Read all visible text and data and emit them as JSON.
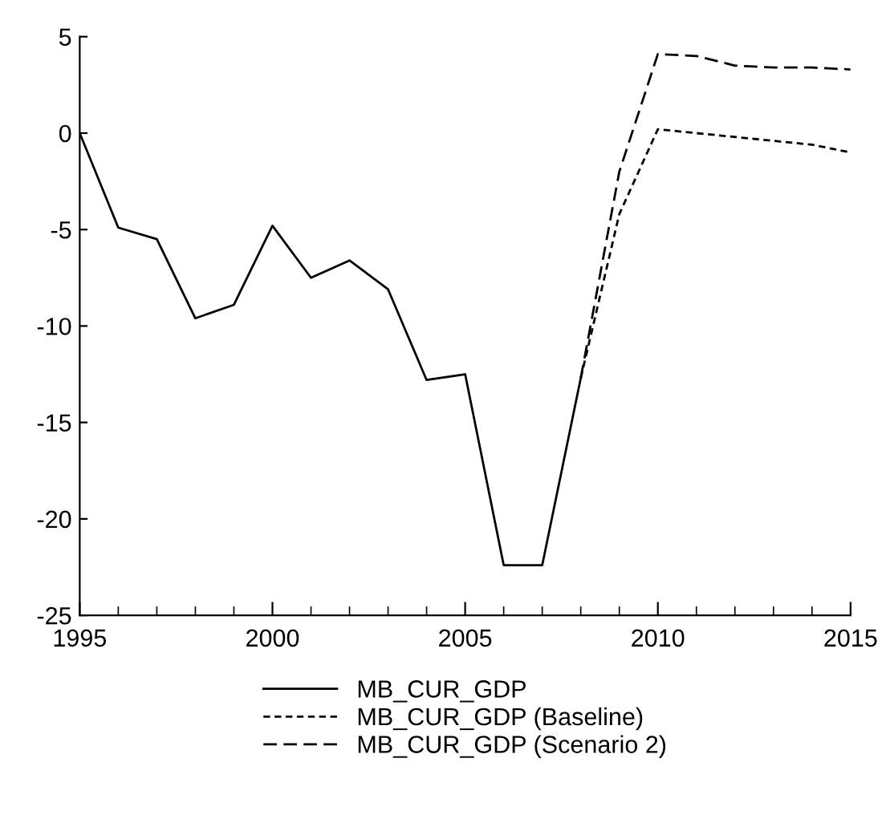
{
  "chart_data": {
    "type": "line",
    "xlim": [
      1995,
      2015
    ],
    "ylim": [
      -25,
      5
    ],
    "xticks": [
      1995,
      2000,
      2005,
      2010,
      2015
    ],
    "yticks": [
      -25,
      -20,
      -15,
      -10,
      -5,
      0,
      5
    ],
    "grid": false,
    "legend": "bottom",
    "marker": "none",
    "series": [
      {
        "name": "MB_CUR_GDP",
        "color": "#000000",
        "line_style": "solid",
        "x": [
          1995,
          1996,
          1997,
          1998,
          1999,
          2000,
          2001,
          2002,
          2003,
          2004,
          2005,
          2006,
          2007,
          2008
        ],
        "values": [
          0,
          -4.9,
          -5.5,
          -9.6,
          -8.9,
          -4.8,
          -7.5,
          -6.6,
          -8.1,
          -12.8,
          -12.5,
          -22.4,
          -22.4,
          -12.7
        ]
      },
      {
        "name": "MB_CUR_GDP (Baseline)",
        "color": "#000000",
        "line_style": "dotted",
        "x": [
          2008,
          2009,
          2010,
          2011,
          2012,
          2013,
          2014,
          2015
        ],
        "values": [
          -12.7,
          -4.2,
          0.2,
          0.0,
          -0.2,
          -0.4,
          -0.6,
          -1.0
        ]
      },
      {
        "name": "MB_CUR_GDP (Scenario 2)",
        "color": "#000000",
        "line_style": "dashed",
        "x": [
          2008,
          2009,
          2010,
          2011,
          2012,
          2013,
          2014,
          2015
        ],
        "values": [
          -12.7,
          -2.0,
          4.1,
          4.0,
          3.5,
          3.4,
          3.4,
          3.3
        ]
      }
    ]
  }
}
